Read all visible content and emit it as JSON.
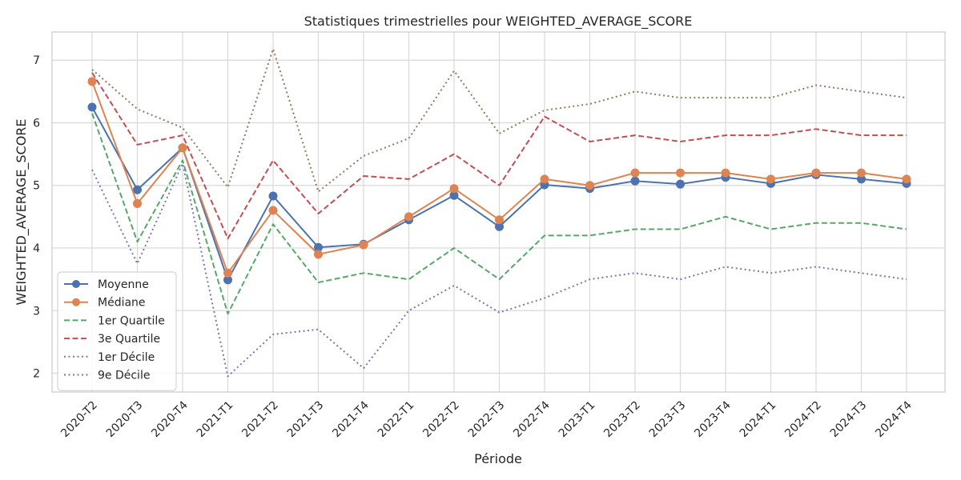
{
  "chart_data": {
    "type": "line",
    "title": "Statistiques trimestrielles pour WEIGHTED_AVERAGE_SCORE",
    "xlabel": "Période",
    "ylabel": "WEIGHTED_AVERAGE_SCORE",
    "ylim": [
      1.7,
      7.45
    ],
    "yticks": [
      2,
      3,
      4,
      5,
      6,
      7
    ],
    "grid": true,
    "legend_position": "lower-left",
    "categories": [
      "2020-T2",
      "2020-T3",
      "2020-T4",
      "2021-T1",
      "2021-T2",
      "2021-T3",
      "2021-T4",
      "2022-T1",
      "2022-T2",
      "2022-T3",
      "2022-T4",
      "2023-T1",
      "2023-T2",
      "2023-T3",
      "2023-T4",
      "2024-T1",
      "2024-T2",
      "2024-T3",
      "2024-T4"
    ],
    "series": [
      {
        "name": "Moyenne",
        "color": "#4c72b0",
        "style": "solid",
        "marker": "circle",
        "values": [
          6.25,
          4.93,
          5.6,
          3.49,
          4.83,
          4.01,
          4.06,
          4.45,
          4.84,
          4.34,
          5.01,
          4.95,
          5.07,
          5.02,
          5.13,
          5.03,
          5.17,
          5.1,
          5.03
        ]
      },
      {
        "name": "Médiane",
        "color": "#dd8452",
        "style": "solid",
        "marker": "circle",
        "values": [
          6.66,
          4.71,
          5.6,
          3.6,
          4.6,
          3.9,
          4.05,
          4.5,
          4.95,
          4.45,
          5.1,
          5.0,
          5.2,
          5.2,
          5.2,
          5.1,
          5.2,
          5.2,
          5.1
        ]
      },
      {
        "name": "1er Quartile",
        "color": "#55a868",
        "style": "dashed",
        "marker": "none",
        "values": [
          6.15,
          4.1,
          5.4,
          2.95,
          4.38,
          3.45,
          3.6,
          3.5,
          4.0,
          3.5,
          4.2,
          4.2,
          4.3,
          4.3,
          4.5,
          4.3,
          4.4,
          4.4,
          4.3
        ]
      },
      {
        "name": "3e Quartile",
        "color": "#c44e52",
        "style": "dashed",
        "marker": "none",
        "values": [
          6.8,
          5.65,
          5.8,
          4.15,
          5.4,
          4.55,
          5.15,
          5.1,
          5.5,
          5.0,
          6.1,
          5.7,
          5.8,
          5.7,
          5.8,
          5.8,
          5.9,
          5.8,
          5.8
        ]
      },
      {
        "name": "1er Décile",
        "color": "#8172b3",
        "style": "dotted",
        "marker": "none",
        "values": [
          5.25,
          3.75,
          5.35,
          1.95,
          2.62,
          2.7,
          2.08,
          3.0,
          3.4,
          2.97,
          3.2,
          3.5,
          3.6,
          3.5,
          3.7,
          3.6,
          3.7,
          3.6,
          3.5
        ]
      },
      {
        "name": "9e Décile",
        "color": "#937860",
        "style": "dotted",
        "marker": "none",
        "values": [
          6.85,
          6.22,
          5.92,
          4.97,
          7.18,
          4.9,
          5.47,
          5.75,
          6.83,
          5.83,
          6.2,
          6.3,
          6.5,
          6.4,
          6.4,
          6.4,
          6.6,
          6.5,
          6.4
        ]
      }
    ]
  }
}
